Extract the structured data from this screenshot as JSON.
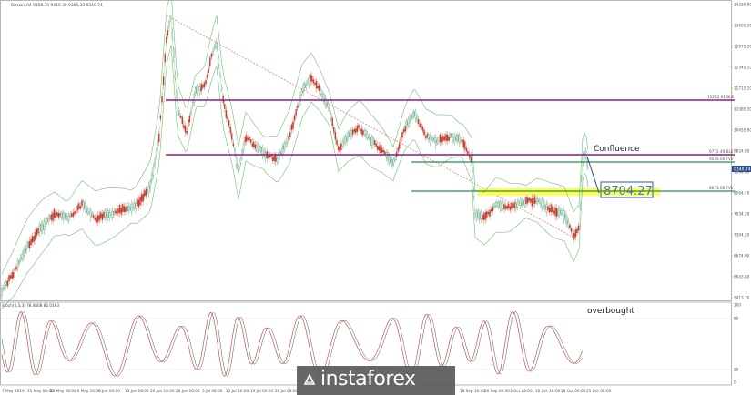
{
  "header": {
    "symbol_line": "Bitcoin,H4  9358.30 9410.30 9305.30 9340.74"
  },
  "osc_header": "Stoch(5,3,3) 78.4608 82.0163",
  "chart_data": {
    "type": "line",
    "title": "Bitcoin,H4  9358.30 9410.30 9305.30 9340.74",
    "price_axis": [
      "14230.80",
      "13605.50",
      "12975.20",
      "12345.10",
      "11715.10",
      "11085.30",
      "10455.00",
      "9824.80",
      "9194.60",
      "8564.40",
      "7934.20",
      "7304.20",
      "6674.00",
      "6043.80",
      "5413.70"
    ],
    "osc_axis": [
      "100",
      "80",
      "20",
      "0"
    ],
    "x_ticks": [
      "7 May 2019",
      "15 May 08:00",
      "22 May 08:00",
      "29 May 16:00",
      "6 Jun 00:00",
      "13 Jun 08:00",
      "20 Jun 16:00",
      "28 Jun 00:00",
      "5 Jul 08:00",
      "12 Jul 16:00",
      "19 Jul 00:00",
      "26 Jul 08:00",
      "18 Sep 16:00",
      "26 Sep 00:00",
      "3 Oct 08:00",
      "10 Oct 16:00",
      "18 Oct 00:00",
      "25 Oct 08:00"
    ],
    "levels": [
      {
        "name": "resistance",
        "value": "11252.61",
        "label": "11252.61 BLE",
        "color": "#8b1a8b"
      },
      {
        "name": "confluence",
        "value": "9772.49",
        "label": "9772.49 BLE",
        "color": "#8b1a8b"
      },
      {
        "name": "level-1",
        "value": "9535.00",
        "label": "9535.00 FVE",
        "color": "#2e8b57"
      },
      {
        "name": "level-2",
        "value": "8673.00",
        "label": "8673.00 FVE",
        "color": "#2e8b57"
      }
    ],
    "current_price": "9340.74",
    "annotations": {
      "confluence": "Confluence",
      "price_box": "8704.27",
      "overbought": "overbought"
    },
    "colors": {
      "bull": "#2e8b57",
      "bear": "#c0392b",
      "band": "#6fbf6f",
      "trend": "#e07070",
      "stoch_main": "#c0392b",
      "stoch_signal": "#555555",
      "yellow": "#ffff33",
      "box": "#4a78b5"
    }
  },
  "watermark": {
    "text": "instaforex"
  }
}
